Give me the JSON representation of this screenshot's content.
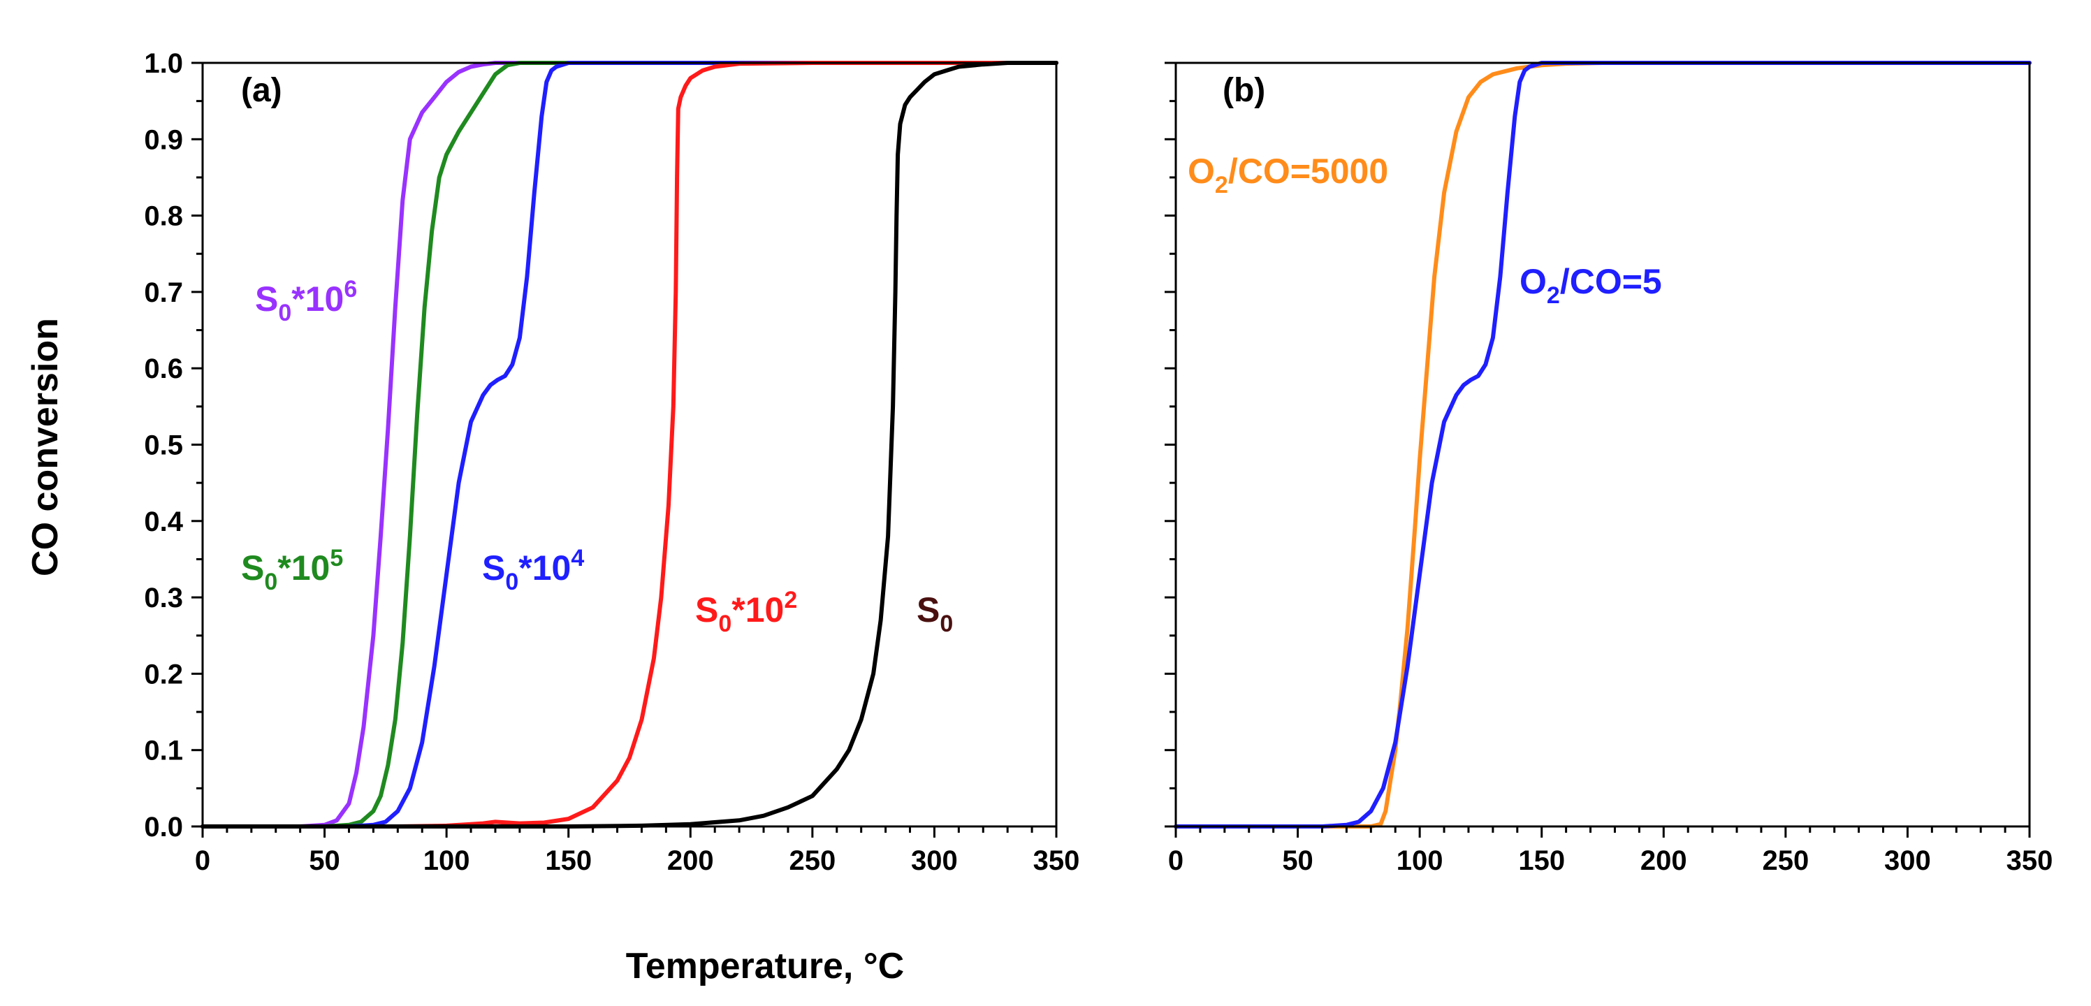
{
  "chart_data": [
    {
      "type": "line",
      "panel_label": "(a)",
      "ylabel": "CO conversion",
      "xlim": [
        0,
        350
      ],
      "ylim": [
        0,
        1.0
      ],
      "xticks": [
        "0",
        "50",
        "100",
        "150",
        "200",
        "250",
        "300",
        "350"
      ],
      "yticks": [
        "0.0",
        "0.1",
        "0.2",
        "0.3",
        "0.4",
        "0.5",
        "0.6",
        "0.7",
        "0.8",
        "0.9",
        "1.0"
      ],
      "series": [
        {
          "name": "S0*10^6",
          "label_main": "S",
          "label_sub": "0",
          "label_mid": "*10",
          "label_sup": "6",
          "color": "#9932ff",
          "x": [
            0,
            40,
            50,
            55,
            60,
            63,
            66,
            70,
            73,
            76,
            79,
            82,
            85,
            90,
            95,
            100,
            105,
            110,
            115,
            120,
            130,
            150,
            200,
            350
          ],
          "y": [
            0,
            0.0,
            0.002,
            0.008,
            0.03,
            0.07,
            0.13,
            0.25,
            0.38,
            0.52,
            0.68,
            0.82,
            0.9,
            0.935,
            0.955,
            0.975,
            0.988,
            0.995,
            0.998,
            1.0,
            1.0,
            1.0,
            1.0,
            1.0
          ]
        },
        {
          "name": "S0*10^5",
          "label_main": "S",
          "label_sub": "0",
          "label_mid": "*10",
          "label_sup": "5",
          "color": "#1f8a1f",
          "x": [
            0,
            50,
            60,
            65,
            70,
            73,
            76,
            79,
            82,
            85,
            88,
            91,
            94,
            97,
            100,
            105,
            110,
            115,
            120,
            125,
            130,
            150,
            200,
            350
          ],
          "y": [
            0,
            0.0,
            0.002,
            0.006,
            0.02,
            0.04,
            0.08,
            0.14,
            0.24,
            0.38,
            0.54,
            0.68,
            0.78,
            0.85,
            0.88,
            0.91,
            0.935,
            0.96,
            0.985,
            0.997,
            1.0,
            1.0,
            1.0,
            1.0
          ]
        },
        {
          "name": "S0*10^4",
          "label_main": "S",
          "label_sub": "0",
          "label_mid": "*10",
          "label_sup": "4",
          "color": "#1f1fff",
          "x": [
            0,
            60,
            70,
            75,
            80,
            85,
            90,
            95,
            100,
            105,
            110,
            115,
            118,
            121,
            124,
            127,
            130,
            133,
            136,
            139,
            141,
            143,
            145,
            150,
            200,
            350
          ],
          "y": [
            0,
            0.0,
            0.002,
            0.006,
            0.02,
            0.05,
            0.11,
            0.21,
            0.33,
            0.45,
            0.53,
            0.565,
            0.578,
            0.585,
            0.59,
            0.605,
            0.64,
            0.72,
            0.83,
            0.93,
            0.975,
            0.99,
            0.995,
            1.0,
            1.0,
            1.0
          ]
        },
        {
          "name": "S0*10^2",
          "label_main": "S",
          "label_sub": "0",
          "label_mid": "*10",
          "label_sup": "2",
          "color": "#ff1a1a",
          "x": [
            0,
            80,
            100,
            110,
            115,
            120,
            125,
            130,
            140,
            150,
            160,
            170,
            175,
            180,
            185,
            188,
            191,
            193,
            194,
            194.5,
            195,
            196,
            198,
            200,
            205,
            210,
            220,
            250,
            350
          ],
          "y": [
            0,
            0.0,
            0.001,
            0.003,
            0.004,
            0.006,
            0.005,
            0.004,
            0.005,
            0.01,
            0.025,
            0.06,
            0.09,
            0.14,
            0.22,
            0.3,
            0.42,
            0.55,
            0.7,
            0.85,
            0.94,
            0.955,
            0.97,
            0.98,
            0.99,
            0.995,
            0.999,
            1.0,
            1.0
          ]
        },
        {
          "name": "S0",
          "label_main": "S",
          "label_sub": "0",
          "label_mid": "",
          "label_sup": "",
          "color": "#000000",
          "label_color": "#4a1010",
          "x": [
            0,
            150,
            180,
            200,
            220,
            230,
            240,
            250,
            260,
            265,
            270,
            275,
            278,
            281,
            283,
            284,
            284.5,
            285,
            286,
            288,
            290,
            293,
            296,
            300,
            305,
            310,
            320,
            330,
            350
          ],
          "y": [
            0,
            0.0,
            0.001,
            0.003,
            0.008,
            0.014,
            0.025,
            0.04,
            0.075,
            0.1,
            0.14,
            0.2,
            0.27,
            0.38,
            0.55,
            0.7,
            0.8,
            0.88,
            0.92,
            0.945,
            0.955,
            0.965,
            0.975,
            0.985,
            0.99,
            0.995,
            0.998,
            1.0,
            1.0
          ]
        }
      ]
    },
    {
      "type": "line",
      "panel_label": "(b)",
      "xlim": [
        0,
        350
      ],
      "ylim": [
        0,
        1.0
      ],
      "xticks": [
        "0",
        "50",
        "100",
        "150",
        "200",
        "250",
        "300",
        "350"
      ],
      "series": [
        {
          "name": "O2/CO=5000",
          "label_main": "O",
          "label_sub": "2",
          "label_mid": "/CO=5000",
          "label_sup": "",
          "color": "#ff8c1a",
          "x": [
            0,
            80,
            84,
            86,
            88,
            90,
            92,
            95,
            98,
            100,
            103,
            106,
            110,
            115,
            120,
            125,
            130,
            140,
            150,
            160,
            175,
            200,
            350
          ],
          "y": [
            0,
            0.0,
            0.003,
            0.02,
            0.06,
            0.1,
            0.16,
            0.26,
            0.39,
            0.48,
            0.6,
            0.72,
            0.83,
            0.91,
            0.955,
            0.975,
            0.985,
            0.993,
            0.997,
            0.999,
            1.0,
            1.0,
            1.0
          ]
        },
        {
          "name": "O2/CO=5",
          "label_main": "O",
          "label_sub": "2",
          "label_mid": "/CO=5",
          "label_sup": "",
          "color": "#1f1fff",
          "x": [
            0,
            60,
            70,
            75,
            80,
            85,
            90,
            95,
            100,
            105,
            110,
            115,
            118,
            121,
            124,
            127,
            130,
            133,
            136,
            139,
            141,
            143,
            145,
            150,
            200,
            350
          ],
          "y": [
            0,
            0.0,
            0.002,
            0.006,
            0.02,
            0.05,
            0.11,
            0.21,
            0.33,
            0.45,
            0.53,
            0.565,
            0.578,
            0.585,
            0.59,
            0.605,
            0.64,
            0.72,
            0.83,
            0.93,
            0.975,
            0.99,
            0.995,
            1.0,
            1.0,
            1.0
          ]
        }
      ]
    }
  ],
  "xlabel": "Temperature, °C"
}
